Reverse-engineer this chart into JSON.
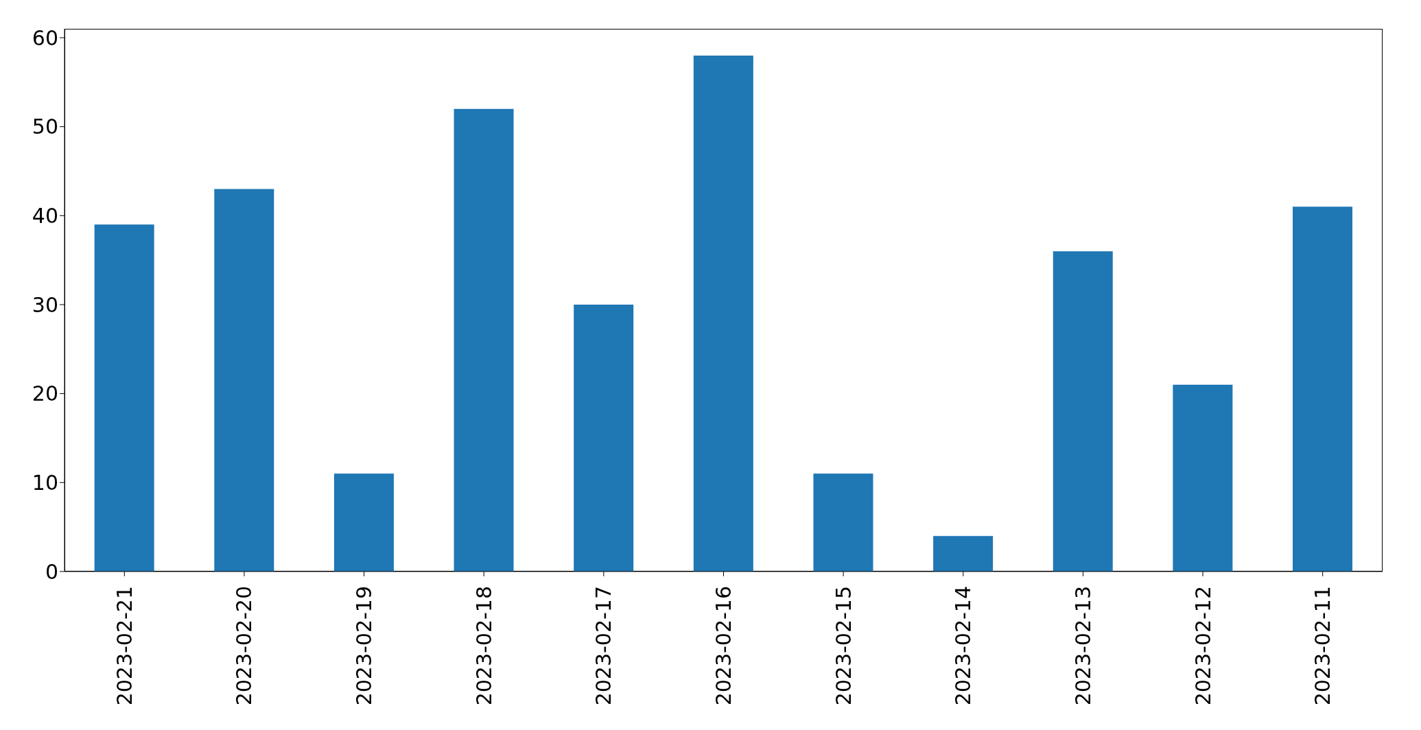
{
  "chart_data": {
    "type": "bar",
    "categories": [
      "2023-02-21",
      "2023-02-20",
      "2023-02-19",
      "2023-02-18",
      "2023-02-17",
      "2023-02-16",
      "2023-02-15",
      "2023-02-14",
      "2023-02-13",
      "2023-02-12",
      "2023-02-11"
    ],
    "values": [
      39,
      43,
      11,
      52,
      30,
      58,
      11,
      4,
      36,
      21,
      41
    ],
    "color": "#1f77b4",
    "ylim": [
      0,
      61
    ],
    "yticks": [
      0,
      10,
      20,
      30,
      40,
      50,
      60
    ]
  }
}
